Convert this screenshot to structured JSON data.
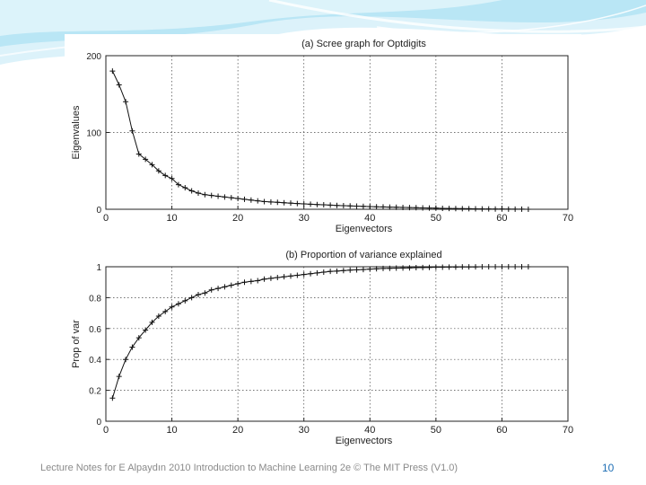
{
  "slide": {
    "footer": "Lecture Notes for E Alpaydın 2010 Introduction to Machine Learning 2e © The MIT Press (V1.0)",
    "page_number": "10",
    "accent_color": "#5ec8e8"
  },
  "chart_data": [
    {
      "type": "line",
      "title": "(a) Scree graph for Optdigits",
      "xlabel": "Eigenvectors",
      "ylabel": "Eigenvalues",
      "xlim": [
        0,
        70
      ],
      "ylim": [
        0,
        200
      ],
      "xticks": [
        0,
        10,
        20,
        30,
        40,
        50,
        60,
        70
      ],
      "yticks": [
        0,
        100,
        200
      ],
      "grid": true,
      "marker": "+",
      "series": [
        {
          "x": [
            1,
            2,
            3,
            4,
            5,
            6,
            7,
            8,
            9,
            10,
            11,
            12,
            13,
            14,
            15,
            16,
            17,
            18,
            19,
            20,
            21,
            22,
            23,
            24,
            25,
            26,
            27,
            28,
            29,
            30,
            31,
            32,
            33,
            34,
            35,
            36,
            37,
            38,
            39,
            40,
            41,
            42,
            43,
            44,
            45,
            46,
            47,
            48,
            49,
            50,
            51,
            52,
            53,
            54,
            55,
            56,
            57,
            58,
            59,
            60,
            61,
            62,
            63,
            64
          ],
          "y": [
            180,
            162,
            140,
            102,
            72,
            65,
            58,
            50,
            44,
            40,
            32,
            28,
            24,
            21,
            19,
            18,
            17,
            16,
            15,
            14,
            13,
            12,
            11,
            10,
            9.5,
            9,
            8.5,
            8,
            7.5,
            7,
            6.6,
            6.2,
            5.8,
            5.4,
            5,
            4.7,
            4.4,
            4.1,
            3.8,
            3.5,
            3.2,
            3,
            2.8,
            2.6,
            2.4,
            2.2,
            2,
            1.8,
            1.6,
            1.4,
            1.2,
            1,
            0.9,
            0.8,
            0.7,
            0.6,
            0.5,
            0.4,
            0.3,
            0.25,
            0.2,
            0.15,
            0.1,
            0.05
          ]
        }
      ]
    },
    {
      "type": "line",
      "title": "(b) Proportion of variance explained",
      "xlabel": "Eigenvectors",
      "ylabel": "Prop of var",
      "xlim": [
        0,
        70
      ],
      "ylim": [
        0,
        1
      ],
      "xticks": [
        0,
        10,
        20,
        30,
        40,
        50,
        60,
        70
      ],
      "yticks": [
        0,
        0.2,
        0.4,
        0.6,
        0.8,
        1
      ],
      "ytick_labels": [
        "0",
        "0.2",
        "0.4",
        "0.6",
        "0.8",
        "1"
      ],
      "grid": true,
      "marker": "+",
      "series": [
        {
          "x": [
            1,
            2,
            3,
            4,
            5,
            6,
            7,
            8,
            9,
            10,
            11,
            12,
            13,
            14,
            15,
            16,
            17,
            18,
            19,
            20,
            21,
            22,
            23,
            24,
            25,
            26,
            27,
            28,
            29,
            30,
            31,
            32,
            33,
            34,
            35,
            36,
            37,
            38,
            39,
            40,
            41,
            42,
            43,
            44,
            45,
            46,
            47,
            48,
            49,
            50,
            51,
            52,
            53,
            54,
            55,
            56,
            57,
            58,
            59,
            60,
            61,
            62,
            63,
            64
          ],
          "y": [
            0.15,
            0.29,
            0.4,
            0.48,
            0.54,
            0.59,
            0.64,
            0.68,
            0.71,
            0.74,
            0.76,
            0.78,
            0.8,
            0.82,
            0.83,
            0.85,
            0.86,
            0.87,
            0.88,
            0.89,
            0.9,
            0.905,
            0.91,
            0.92,
            0.925,
            0.93,
            0.935,
            0.94,
            0.945,
            0.95,
            0.955,
            0.96,
            0.965,
            0.97,
            0.972,
            0.975,
            0.978,
            0.98,
            0.982,
            0.985,
            0.987,
            0.989,
            0.99,
            0.991,
            0.992,
            0.993,
            0.994,
            0.995,
            0.996,
            0.997,
            0.997,
            0.998,
            0.998,
            0.999,
            0.999,
            0.999,
            1,
            1,
            1,
            1,
            1,
            1,
            1,
            1
          ]
        }
      ]
    }
  ]
}
